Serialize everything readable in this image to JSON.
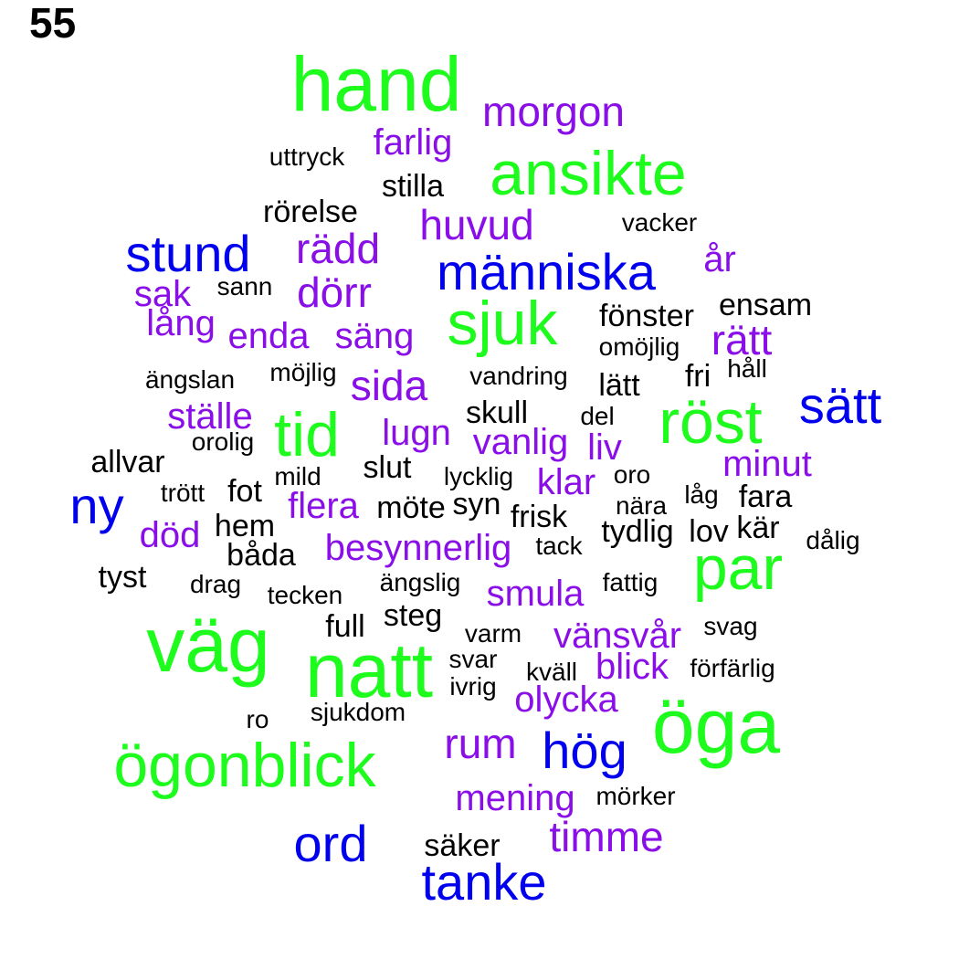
{
  "page_label": "55",
  "colors": {
    "level1": "#1dfc1d",
    "level2": "#0000ee",
    "level3": "#8a0ee8",
    "level4": "#000000"
  },
  "words": [
    "hand",
    "väg",
    "natt",
    "öga",
    "ögonblick",
    "röst",
    "ansikte",
    "sjuk",
    "tid",
    "par",
    "människa",
    "stund",
    "sätt",
    "ny",
    "ord",
    "tanke",
    "hög",
    "morgon",
    "farlig",
    "huvud",
    "rädd",
    "dörr",
    "sak",
    "lång",
    "enda",
    "säng",
    "år",
    "rätt",
    "sida",
    "ställe",
    "lugn",
    "vanlig",
    "liv",
    "minut",
    "klar",
    "flera",
    "död",
    "besynnerlig",
    "smula",
    "vänsvår",
    "blick",
    "olycka",
    "rum",
    "mening",
    "timme",
    "uttryck",
    "stilla",
    "rörelse",
    "vacker",
    "sann",
    "fönster",
    "ensam",
    "omöjlig",
    "ängslan",
    "möjlig",
    "vandring",
    "lätt",
    "fri",
    "håll",
    "skull",
    "del",
    "orolig",
    "allvar",
    "slut",
    "mild",
    "lycklig",
    "oro",
    "trött",
    "fot",
    "möte",
    "syn",
    "nära",
    "låg",
    "fara",
    "hem",
    "frisk",
    "tydlig",
    "lov",
    "kär",
    "dålig",
    "båda",
    "tack",
    "tyst",
    "drag",
    "tecken",
    "ängslig",
    "fattig",
    "full",
    "steg",
    "svag",
    "varm",
    "svar",
    "kväll",
    "förfärlig",
    "ivrig",
    "ro",
    "sjukdom",
    "mörker",
    "säker"
  ]
}
